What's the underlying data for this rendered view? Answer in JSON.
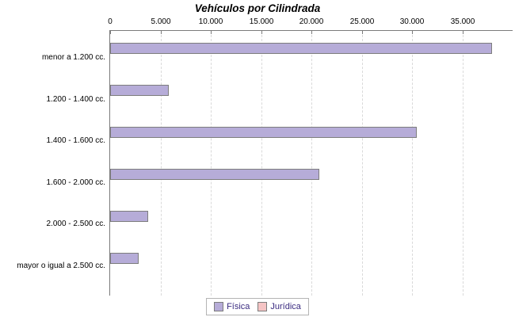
{
  "chart_data": {
    "type": "bar",
    "orientation": "horizontal",
    "title": "Vehículos por Cilindrada",
    "categories": [
      "menor a 1.200 cc.",
      "1.200 - 1.400 cc.",
      "1.400 - 1.600 cc.",
      "1.600 - 2.000 cc.",
      "2.000 - 2.500 cc.",
      "mayor o igual a 2.500 cc."
    ],
    "series": [
      {
        "name": "Física",
        "color": "#b6acd8",
        "values": [
          37800,
          5700,
          30300,
          20600,
          3600,
          2700
        ]
      },
      {
        "name": "Jurídica",
        "color": "#f5c4c4",
        "values": [
          0,
          0,
          0,
          0,
          0,
          0
        ]
      }
    ],
    "xlim": [
      0,
      40000
    ],
    "tick_interval": 5000,
    "tick_labels": [
      "0",
      "5.000",
      "10.000",
      "15.000",
      "20.000",
      "25.000",
      "30.000",
      "35.000"
    ],
    "grid": "vertical-dashed",
    "legend_position": "bottom-center"
  },
  "colors": {
    "bar_fisica": "#b6acd8",
    "bar_juridica": "#f5c4c4",
    "bar_border": "#7d7d7d",
    "axis_line": "#7b7b7b",
    "gridline": "#d9d9d9",
    "legend_text": "#3a2b80",
    "legend_border": "#b4b4b4",
    "title_text": "#000000"
  }
}
